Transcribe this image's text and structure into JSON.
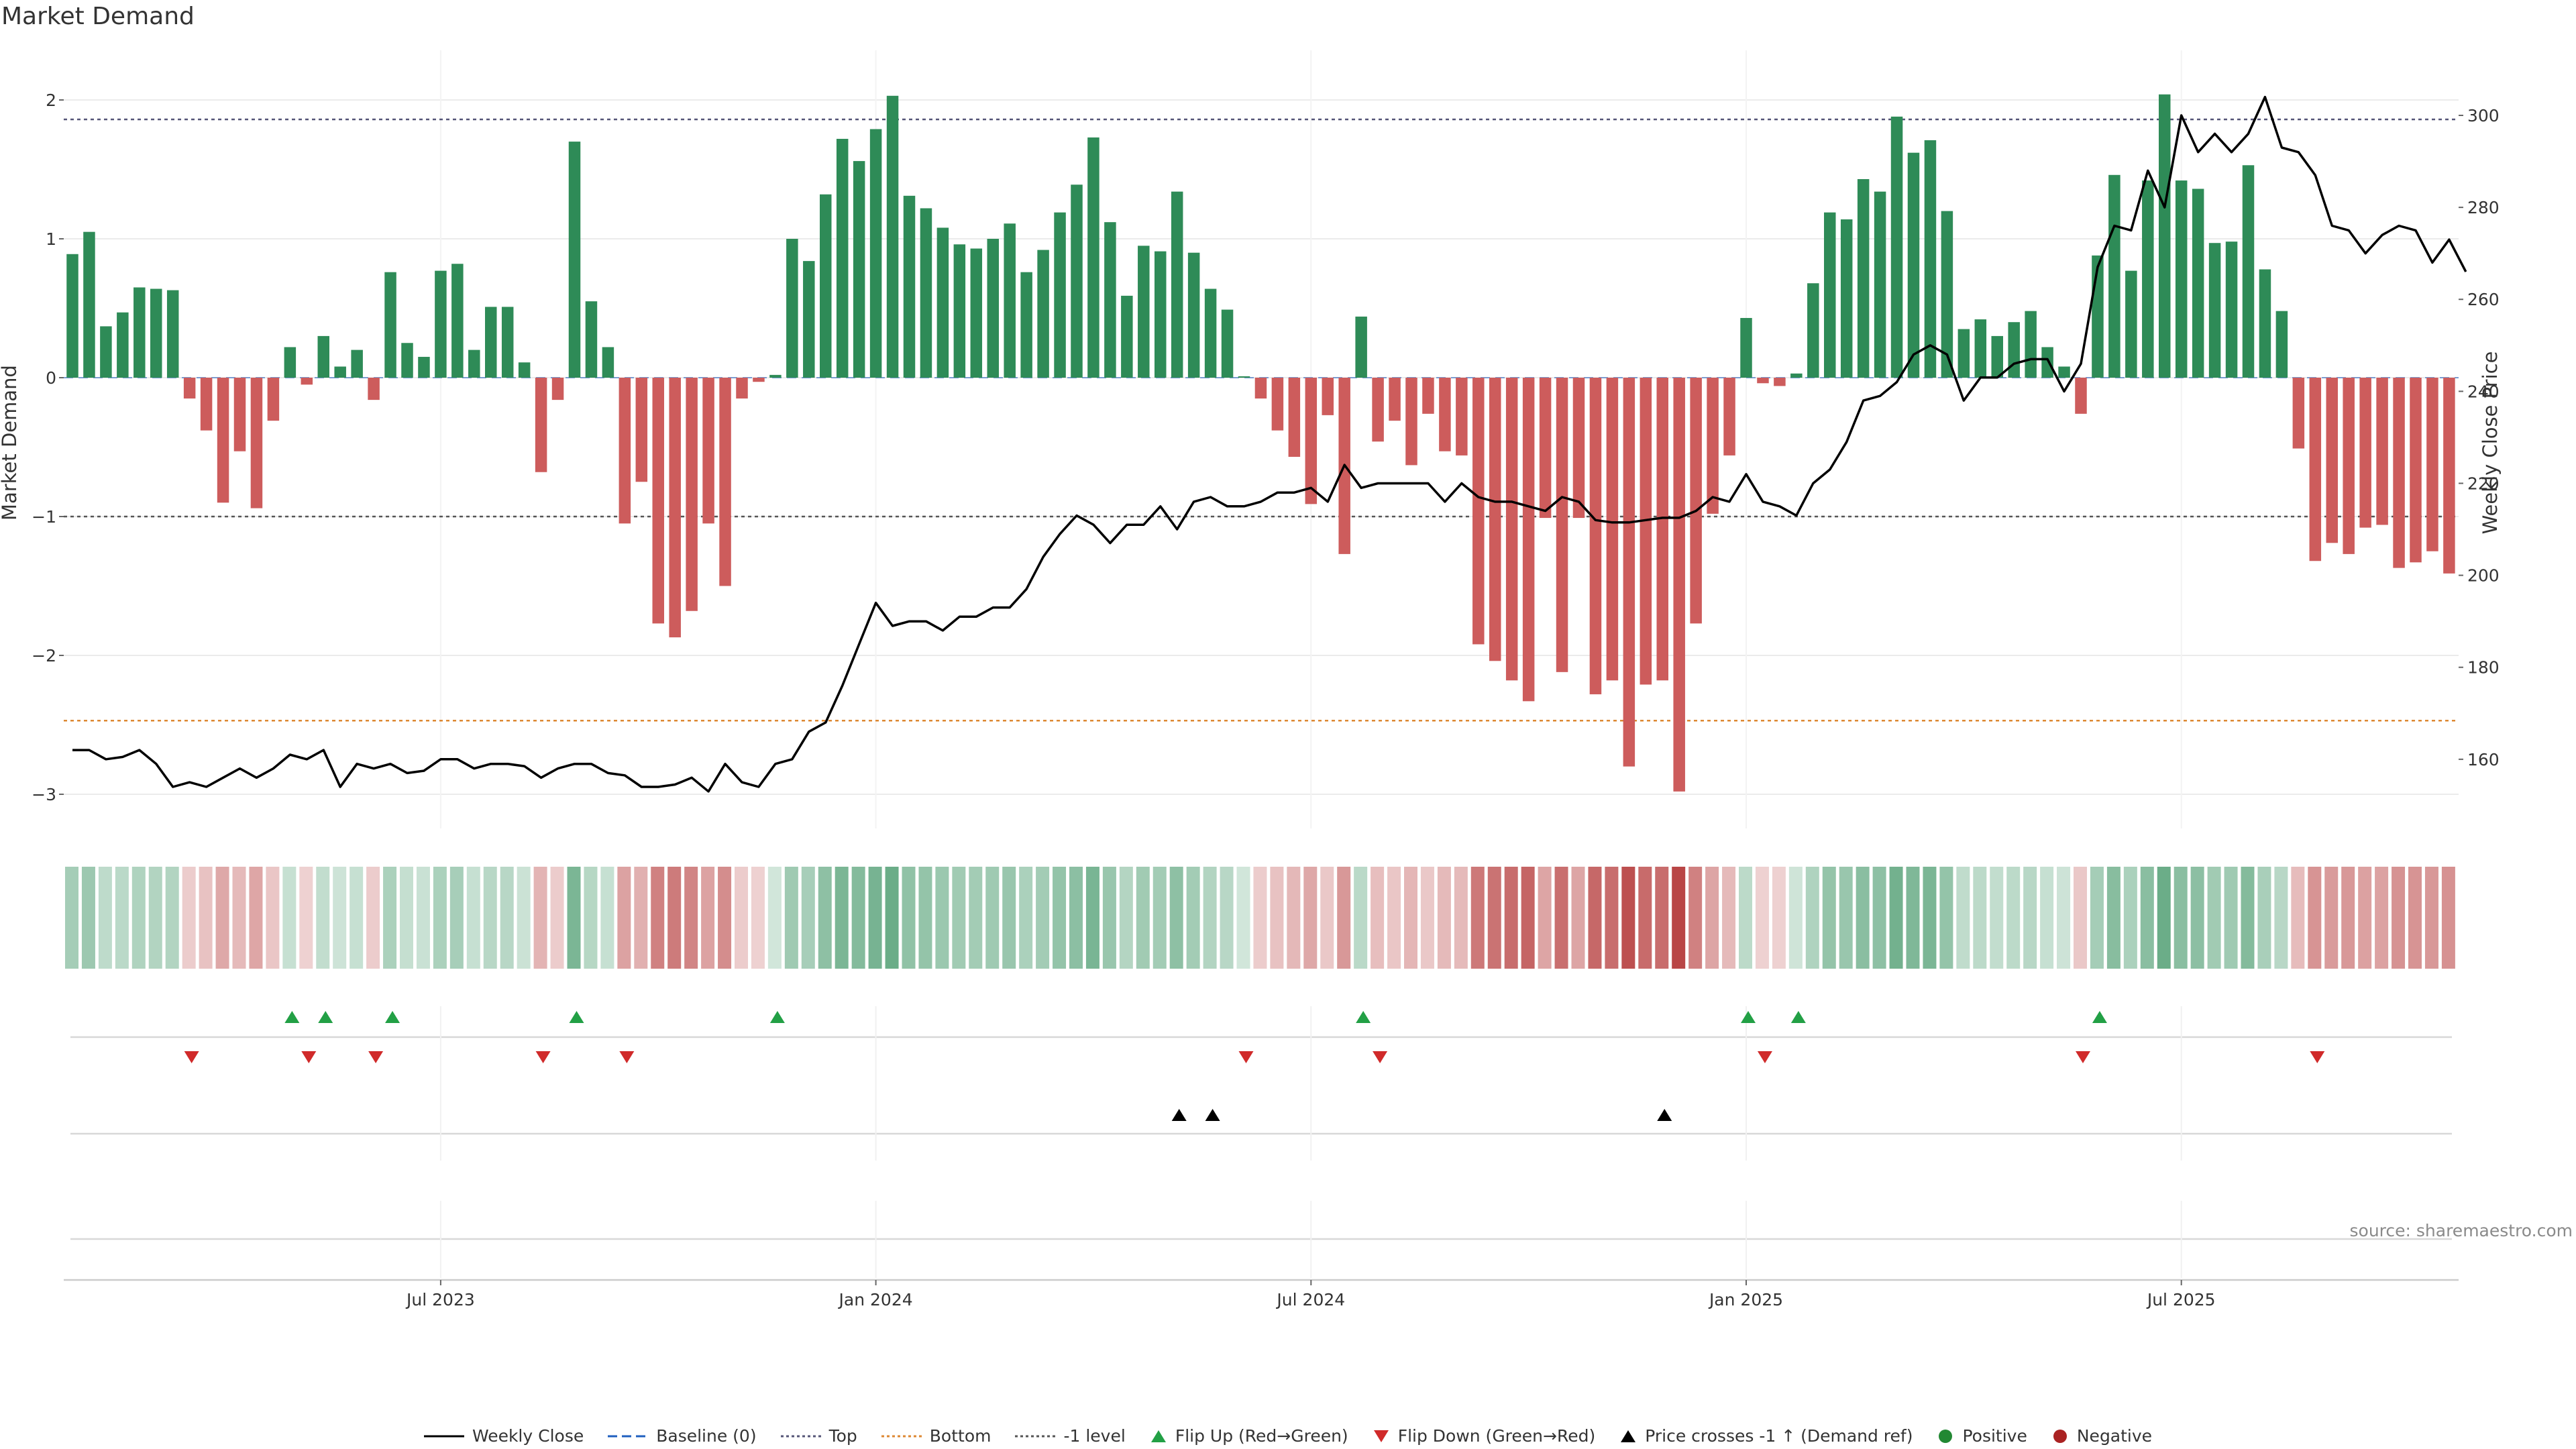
{
  "chart_data": {
    "type": "bar",
    "title": "Market Demand",
    "ylabel": "Market Demand",
    "y2label": "Weekly Close Price",
    "ylim": [
      -3.25,
      2.15
    ],
    "y2lim": [
      150.7,
      309.0
    ],
    "yticks": [
      "-3",
      "-2",
      "-1",
      "0",
      "1",
      "2"
    ],
    "y2ticks": [
      "160",
      "180",
      "200",
      "220",
      "240",
      "260",
      "280",
      "300"
    ],
    "x_tick_labels": [
      "Jul 2023",
      "Jan 2024",
      "Jul 2024",
      "Jan 2025",
      "Jul 2025"
    ],
    "x_tick_weeks": [
      22,
      48,
      74,
      100,
      126
    ],
    "reference_lines": {
      "top": 1.86,
      "bottom": -2.47,
      "minus_one": -1.0
    },
    "series": [
      {
        "name": "Market Demand",
        "values": [
          0.89,
          1.05,
          0.37,
          0.47,
          0.65,
          0.64,
          0.63,
          -0.15,
          -0.38,
          -0.9,
          -0.53,
          -0.94,
          -0.31,
          0.22,
          -0.05,
          0.3,
          0.08,
          0.2,
          -0.16,
          0.76,
          0.25,
          0.15,
          0.77,
          0.82,
          0.2,
          0.51,
          0.51,
          0.11,
          -0.68,
          -0.16,
          1.7,
          0.55,
          0.22,
          -1.05,
          -0.75,
          -1.77,
          -1.87,
          -1.68,
          -1.05,
          -1.5,
          -0.15,
          -0.03,
          0.02,
          1.0,
          0.84,
          1.32,
          1.72,
          1.56,
          1.79,
          2.03,
          1.31,
          1.22,
          1.08,
          0.96,
          0.93,
          1.0,
          1.11,
          0.76,
          0.92,
          1.19,
          1.39,
          1.73,
          1.12,
          0.59,
          0.95,
          0.91,
          1.34,
          0.9,
          0.64,
          0.49,
          0.01,
          -0.15,
          -0.38,
          -0.57,
          -0.91,
          -0.27,
          -1.27,
          0.44,
          -0.46,
          -0.31,
          -0.63,
          -0.26,
          -0.53,
          -0.56,
          -1.92,
          -2.04,
          -2.18,
          -2.33,
          -1.01,
          -2.12,
          -1.01,
          -2.28,
          -2.18,
          -2.8,
          -2.21,
          -2.18,
          -2.98,
          -1.77,
          -0.98,
          -0.56,
          0.43,
          -0.04,
          -0.06,
          0.03,
          0.68,
          1.19,
          1.14,
          1.43,
          1.34,
          1.88,
          1.62,
          1.71,
          1.2,
          0.35,
          0.42,
          0.3,
          0.4,
          0.48,
          0.22,
          0.08,
          -0.26,
          0.88,
          1.46,
          0.77,
          1.42,
          2.04,
          1.42,
          1.36,
          0.97,
          0.98,
          1.53,
          0.78,
          0.48,
          -0.51,
          -1.32,
          -1.19,
          -1.27,
          -1.08,
          -1.06,
          -1.37,
          -1.33,
          -1.25,
          -1.41
        ]
      },
      {
        "name": "Weekly Close",
        "values": [
          162,
          162,
          160,
          160.5,
          162,
          159,
          154,
          155,
          154,
          156,
          158,
          156,
          158,
          161,
          160,
          162,
          154,
          159,
          158,
          159,
          157,
          157.5,
          160,
          160,
          158,
          159,
          159,
          158.5,
          156,
          158,
          159,
          159,
          157,
          156.5,
          154,
          154,
          154.5,
          156,
          153,
          159,
          155,
          154,
          159,
          160,
          166,
          168,
          176,
          185,
          194,
          189,
          190,
          190,
          188,
          191,
          191,
          193,
          193,
          197,
          204,
          209,
          213,
          211,
          207,
          211,
          211,
          215,
          210,
          216,
          217,
          215,
          215,
          216,
          218,
          218,
          219,
          216,
          224,
          219,
          220,
          220,
          220,
          220,
          216,
          220,
          217,
          216,
          216,
          215,
          214,
          217,
          216,
          212,
          211.5,
          211.5,
          212,
          212.5,
          212.5,
          214,
          217,
          216,
          222,
          216,
          215,
          213,
          220,
          223,
          229,
          238,
          239,
          242,
          248,
          250,
          248,
          238,
          243,
          243,
          246,
          247,
          247,
          240,
          246,
          267,
          276,
          275,
          288,
          280,
          300,
          292,
          296,
          292,
          296,
          304,
          293,
          292,
          287,
          276,
          275,
          270,
          274,
          276,
          275,
          268,
          273,
          266
        ]
      }
    ],
    "demand_weeks_start_index": 0,
    "signals": {
      "flip_up_weeks": [
        13,
        15,
        19,
        30,
        42,
        77,
        100,
        103,
        121
      ],
      "flip_down_weeks": [
        7,
        14,
        18,
        28,
        33,
        70,
        78,
        101,
        120,
        134
      ],
      "price_cross_weeks": [
        66,
        68,
        95
      ]
    }
  },
  "labels": {
    "title": "Market Demand",
    "y_left": "Market Demand",
    "y_right": "Weekly Close Price",
    "source": "source: sharemaestro.com"
  },
  "legend": [
    {
      "label": "Weekly Close",
      "symbol": "line-solid",
      "color": "#000000"
    },
    {
      "label": "Baseline (0)",
      "symbol": "line-dashed",
      "color": "#1f5fbf"
    },
    {
      "label": "Top",
      "symbol": "line-dotted",
      "color": "#555577"
    },
    {
      "label": "Bottom",
      "symbol": "line-dotted",
      "color": "#dd8833"
    },
    {
      "label": "-1 level",
      "symbol": "line-dotted",
      "color": "#555555"
    },
    {
      "label": "Flip Up (Red→Green)",
      "symbol": "triangle-up",
      "color": "#22a045"
    },
    {
      "label": "Flip Down (Green→Red)",
      "symbol": "triangle-down",
      "color": "#d02a2a"
    },
    {
      "label": "Price crosses -1 ↑ (Demand ref)",
      "symbol": "triangle-up",
      "color": "#000000"
    },
    {
      "label": "Positive",
      "symbol": "dot",
      "color": "#228833"
    },
    {
      "label": "Negative",
      "symbol": "dot",
      "color": "#aa2222"
    }
  ],
  "colors": {
    "positive_bar": "#2e8b57",
    "negative_bar": "#cd5c5c",
    "price_line": "#000000",
    "top_line": "#555577",
    "bottom_line": "#dd8833",
    "minus_one_line": "#555555",
    "grid": "#ebebeb",
    "tick_text": "#333333"
  }
}
